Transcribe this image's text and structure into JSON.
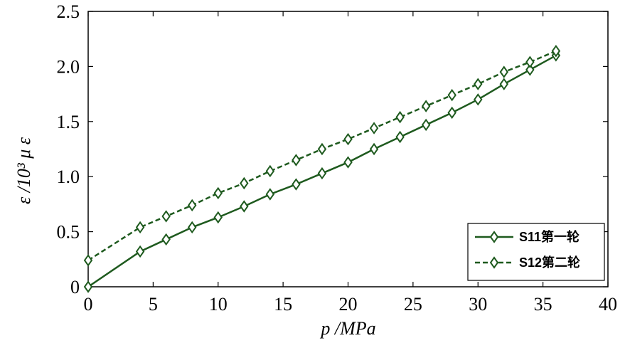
{
  "chart_data": {
    "type": "line",
    "xlabel": "p /MPa",
    "ylabel": "ε /10³ μ ε",
    "xlim": [
      0,
      40
    ],
    "ylim": [
      0,
      2.5
    ],
    "xticks": [
      "0",
      "5",
      "10",
      "15",
      "20",
      "25",
      "30",
      "35",
      "40"
    ],
    "yticks": [
      "0",
      "0.5",
      "1.0",
      "1.5",
      "2.0",
      "2.5"
    ],
    "grid": false,
    "legend_position": "bottom-right",
    "colors": {
      "series": "#1e5a1e",
      "axis": "#000000"
    },
    "series": [
      {
        "name": "S11第一轮",
        "style": "solid",
        "marker": "diamond",
        "x": [
          0,
          4,
          6,
          8,
          10,
          12,
          14,
          16,
          18,
          20,
          22,
          24,
          26,
          28,
          30,
          32,
          34,
          36
        ],
        "values": [
          0.0,
          0.32,
          0.43,
          0.54,
          0.63,
          0.73,
          0.84,
          0.93,
          1.03,
          1.13,
          1.25,
          1.36,
          1.47,
          1.58,
          1.7,
          1.84,
          1.97,
          2.1
        ]
      },
      {
        "name": "S12第二轮",
        "style": "dashed",
        "marker": "diamond",
        "x": [
          0,
          4,
          6,
          8,
          10,
          12,
          14,
          16,
          18,
          20,
          22,
          24,
          26,
          28,
          30,
          32,
          34,
          36
        ],
        "values": [
          0.24,
          0.54,
          0.64,
          0.74,
          0.85,
          0.94,
          1.05,
          1.15,
          1.25,
          1.34,
          1.44,
          1.54,
          1.64,
          1.74,
          1.84,
          1.95,
          2.04,
          2.14
        ]
      }
    ]
  }
}
